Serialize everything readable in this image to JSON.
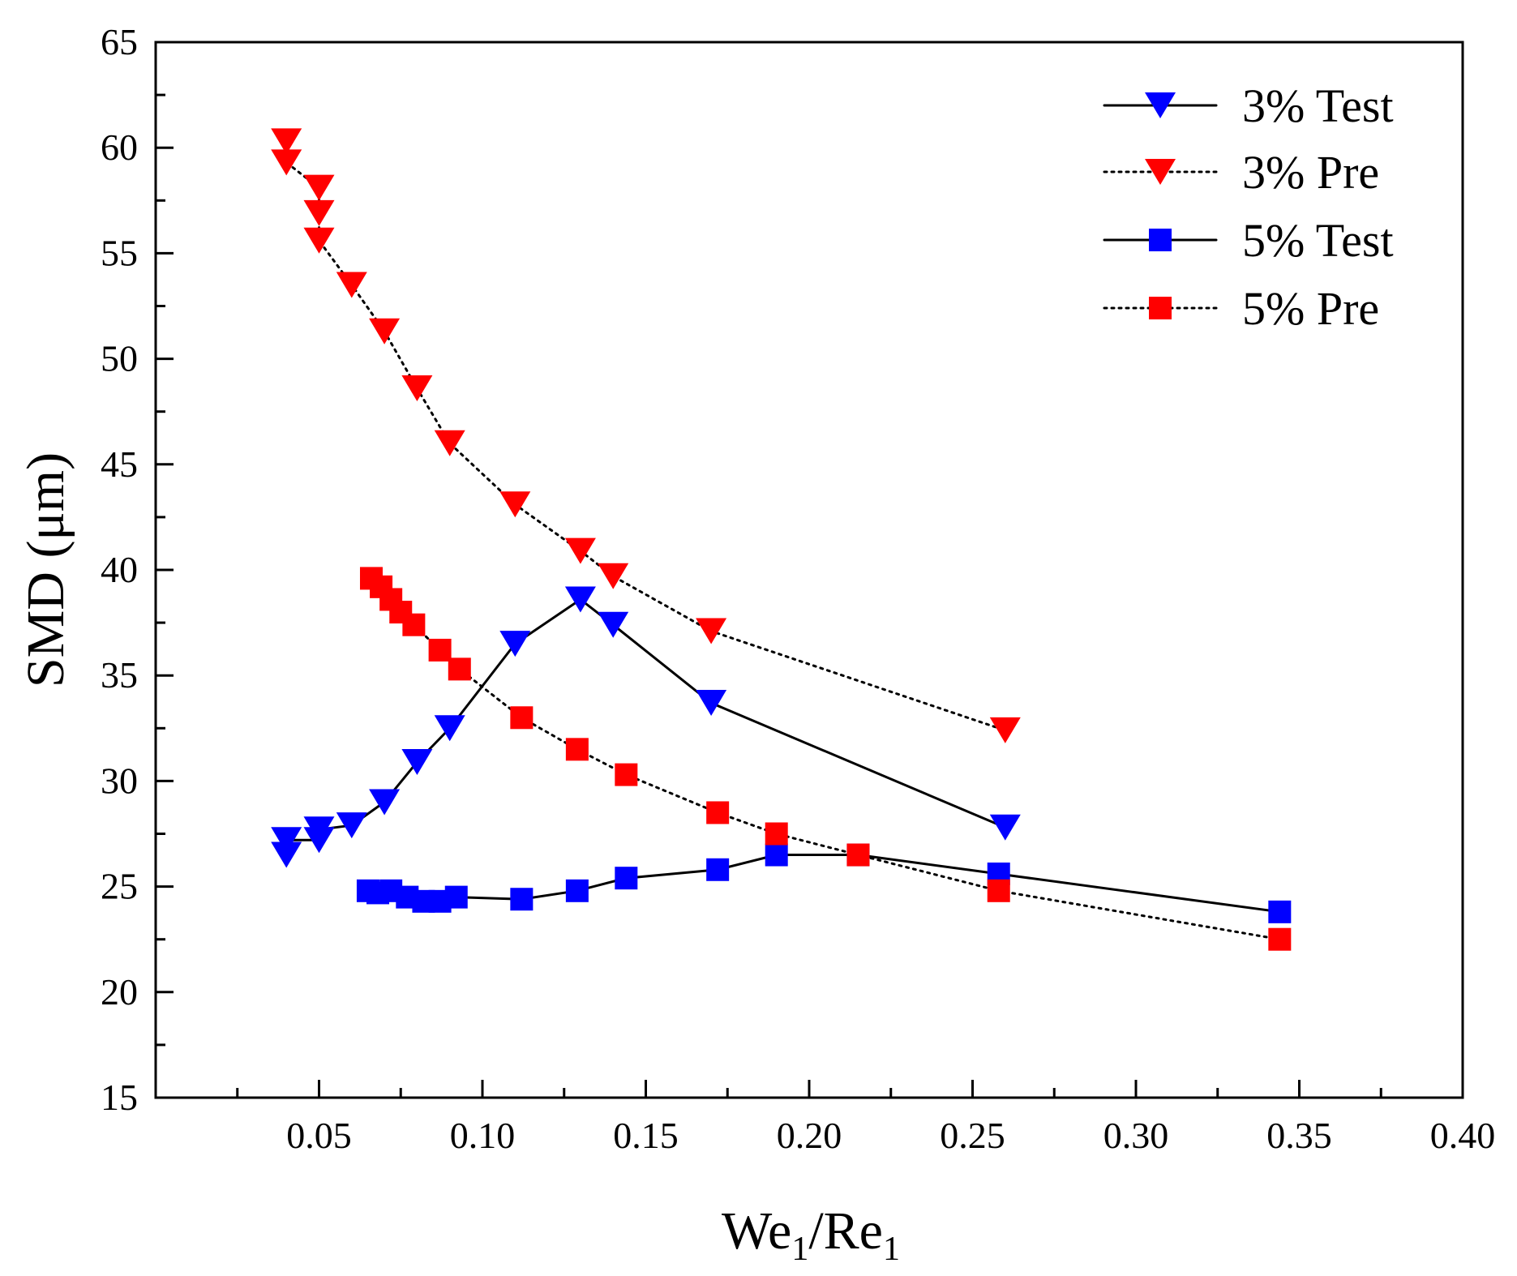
{
  "chart_data": {
    "type": "line",
    "title": "",
    "xlabel": {
      "main": "We",
      "sub1": "1",
      "slash": "/Re",
      "sub2": "1"
    },
    "ylabel": "SMD (μm)",
    "xlim": [
      0.0,
      0.4
    ],
    "ylim": [
      15,
      65
    ],
    "x_ticks": [
      {
        "value": 0.05,
        "label": "0.05"
      },
      {
        "value": 0.1,
        "label": "0.10"
      },
      {
        "value": 0.15,
        "label": "0.15"
      },
      {
        "value": 0.2,
        "label": "0.20"
      },
      {
        "value": 0.25,
        "label": "0.25"
      },
      {
        "value": 0.3,
        "label": "0.30"
      },
      {
        "value": 0.35,
        "label": "0.35"
      },
      {
        "value": 0.4,
        "label": "0.40"
      }
    ],
    "y_ticks": [
      {
        "value": 15,
        "label": "15"
      },
      {
        "value": 20,
        "label": "20"
      },
      {
        "value": 25,
        "label": "25"
      },
      {
        "value": 30,
        "label": "30"
      },
      {
        "value": 35,
        "label": "35"
      },
      {
        "value": 40,
        "label": "40"
      },
      {
        "value": 45,
        "label": "45"
      },
      {
        "value": 50,
        "label": "50"
      },
      {
        "value": 55,
        "label": "55"
      },
      {
        "value": 60,
        "label": "60"
      },
      {
        "value": 65,
        "label": "65"
      }
    ],
    "grid": false,
    "legend_position": "top-right",
    "series": [
      {
        "name": "3% Test",
        "marker": "triangle-down",
        "color": "#0000ff",
        "line_style": "solid",
        "points": [
          [
            0.04,
            26.5
          ],
          [
            0.04,
            27.2
          ],
          [
            0.05,
            27.2
          ],
          [
            0.05,
            27.7
          ],
          [
            0.06,
            27.9
          ],
          [
            0.07,
            29.0
          ],
          [
            0.08,
            30.9
          ],
          [
            0.09,
            32.5
          ],
          [
            0.11,
            36.5
          ],
          [
            0.13,
            38.6
          ],
          [
            0.14,
            37.4
          ],
          [
            0.17,
            33.7
          ],
          [
            0.26,
            27.8
          ]
        ]
      },
      {
        "name": "3% Pre",
        "marker": "triangle-down",
        "color": "#ff0000",
        "line_style": "dotted",
        "points": [
          [
            0.04,
            60.3
          ],
          [
            0.04,
            59.3
          ],
          [
            0.05,
            58.1
          ],
          [
            0.05,
            56.9
          ],
          [
            0.05,
            55.6
          ],
          [
            0.06,
            53.5
          ],
          [
            0.07,
            51.3
          ],
          [
            0.08,
            48.6
          ],
          [
            0.09,
            46.0
          ],
          [
            0.11,
            43.1
          ],
          [
            0.13,
            40.9
          ],
          [
            0.14,
            39.7
          ],
          [
            0.17,
            37.1
          ],
          [
            0.26,
            32.4
          ]
        ]
      },
      {
        "name": "5% Test",
        "marker": "square",
        "color": "#0000ff",
        "line_style": "solid",
        "points": [
          [
            0.065,
            24.8
          ],
          [
            0.068,
            24.7
          ],
          [
            0.072,
            24.8
          ],
          [
            0.077,
            24.5
          ],
          [
            0.082,
            24.3
          ],
          [
            0.087,
            24.3
          ],
          [
            0.092,
            24.5
          ],
          [
            0.112,
            24.4
          ],
          [
            0.129,
            24.8
          ],
          [
            0.144,
            25.4
          ],
          [
            0.172,
            25.8
          ],
          [
            0.19,
            26.5
          ],
          [
            0.215,
            26.5
          ],
          [
            0.258,
            25.6
          ],
          [
            0.344,
            23.8
          ]
        ]
      },
      {
        "name": "5% Pre",
        "marker": "square",
        "color": "#ff0000",
        "line_style": "dotted",
        "points": [
          [
            0.066,
            39.6
          ],
          [
            0.069,
            39.2
          ],
          [
            0.072,
            38.6
          ],
          [
            0.075,
            38.0
          ],
          [
            0.079,
            37.4
          ],
          [
            0.087,
            36.2
          ],
          [
            0.093,
            35.3
          ],
          [
            0.112,
            33.0
          ],
          [
            0.129,
            31.5
          ],
          [
            0.144,
            30.3
          ],
          [
            0.172,
            28.5
          ],
          [
            0.19,
            27.5
          ],
          [
            0.215,
            26.5
          ],
          [
            0.258,
            24.8
          ],
          [
            0.344,
            22.5
          ]
        ]
      }
    ]
  }
}
